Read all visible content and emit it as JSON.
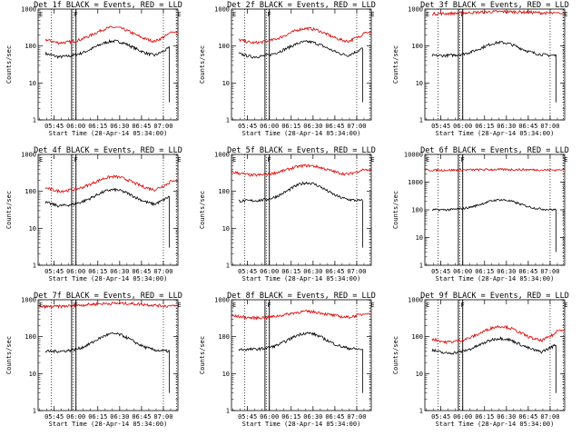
{
  "chart_data": [
    {
      "type": "line",
      "title": "Det 1f BLACK = Events, RED = LLD",
      "xlabel": "Start Time (28-Apr-14 05:34:00)",
      "ylabel": "Counts/sec",
      "yscale": "log",
      "ylim": [
        1,
        1000
      ],
      "yticks": [
        "1",
        "10",
        "100",
        "1000"
      ],
      "x_ticks": [
        "05:45",
        "06:00",
        "06:15",
        "06:30",
        "06:45",
        "07:00"
      ],
      "xlim_minutes": [
        0,
        96
      ],
      "markers": [
        "E",
        "F",
        "E"
      ],
      "markers_at_min": [
        0,
        24,
        95
      ],
      "dotted_lines_min": [
        9,
        24,
        26,
        86,
        95
      ],
      "solid_lines_min": [
        23,
        26
      ],
      "series": [
        {
          "color": "#000000",
          "shape": "valley_hump",
          "base": 50,
          "peak": 135,
          "start": 5,
          "end": 90
        },
        {
          "color": "#dd0000",
          "shape": "valley_hump",
          "base": 120,
          "peak": 320,
          "start": 5,
          "end": 96,
          "end_value": 240
        }
      ]
    },
    {
      "type": "line",
      "title": "Det 2f BLACK = Events, RED = LLD",
      "xlabel": "Start Time (28-Apr-14 05:34:00)",
      "ylabel": "Counts/sec",
      "yscale": "log",
      "ylim": [
        1,
        1000
      ],
      "yticks": [
        "1",
        "10",
        "100",
        "1000"
      ],
      "x_ticks": [
        "05:45",
        "06:00",
        "06:15",
        "06:30",
        "06:45",
        "07:00"
      ],
      "xlim_minutes": [
        0,
        96
      ],
      "markers": [
        "E",
        "F",
        "E"
      ],
      "markers_at_min": [
        0,
        24,
        95
      ],
      "dotted_lines_min": [
        9,
        24,
        26,
        86,
        95
      ],
      "solid_lines_min": [
        23,
        26
      ],
      "series": [
        {
          "color": "#000000",
          "shape": "valley_hump",
          "base": 50,
          "peak": 130,
          "start": 5,
          "end": 90
        },
        {
          "color": "#dd0000",
          "shape": "valley_hump",
          "base": 120,
          "peak": 300,
          "start": 5,
          "end": 96,
          "end_value": 230
        }
      ]
    },
    {
      "type": "line",
      "title": "Det 3f BLACK = Events, RED = LLD",
      "xlabel": "Start Time (28-Apr-14 05:34:00)",
      "ylabel": "Counts/sec",
      "yscale": "log",
      "ylim": [
        1,
        1000
      ],
      "yticks": [
        "1",
        "10",
        "100",
        "1000"
      ],
      "x_ticks": [
        "05:45",
        "06:00",
        "06:15",
        "06:30",
        "06:45",
        "07:00"
      ],
      "xlim_minutes": [
        0,
        96
      ],
      "markers": [
        "E",
        "F",
        "E"
      ],
      "markers_at_min": [
        0,
        24,
        95
      ],
      "dotted_lines_min": [
        9,
        24,
        26,
        86,
        95
      ],
      "solid_lines_min": [
        23,
        26
      ],
      "series": [
        {
          "color": "#000000",
          "shape": "hump",
          "base": 55,
          "peak": 125,
          "start": 5,
          "end": 90
        },
        {
          "color": "#dd0000",
          "shape": "flat",
          "base": 750,
          "peak": 850,
          "start": 5,
          "end": 96,
          "end_value": 780
        }
      ]
    },
    {
      "type": "line",
      "title": "Det 4f BLACK = Events, RED = LLD",
      "xlabel": "Start Time (28-Apr-14 05:34:00)",
      "ylabel": "Counts/sec",
      "yscale": "log",
      "ylim": [
        1,
        1000
      ],
      "yticks": [
        "1",
        "10",
        "100",
        "1000"
      ],
      "x_ticks": [
        "05:45",
        "06:00",
        "06:15",
        "06:30",
        "06:45",
        "07:00"
      ],
      "xlim_minutes": [
        0,
        96
      ],
      "markers": [
        "E",
        "F",
        "E"
      ],
      "markers_at_min": [
        0,
        24,
        95
      ],
      "dotted_lines_min": [
        9,
        24,
        26,
        86,
        95
      ],
      "solid_lines_min": [
        23,
        26
      ],
      "series": [
        {
          "color": "#000000",
          "shape": "valley_hump",
          "base": 40,
          "peak": 110,
          "start": 5,
          "end": 90
        },
        {
          "color": "#dd0000",
          "shape": "valley_hump",
          "base": 100,
          "peak": 250,
          "start": 5,
          "end": 96,
          "end_value": 190
        }
      ]
    },
    {
      "type": "line",
      "title": "Det 5f BLACK = Events, RED = LLD",
      "xlabel": "Start Time (28-Apr-14 05:34:00)",
      "ylabel": "Counts/sec",
      "yscale": "log",
      "ylim": [
        1,
        1000
      ],
      "yticks": [
        "1",
        "10",
        "100",
        "1000"
      ],
      "x_ticks": [
        "05:45",
        "06:00",
        "06:15",
        "06:30",
        "06:45",
        "07:00"
      ],
      "xlim_minutes": [
        0,
        96
      ],
      "markers": [
        "E",
        "F",
        "E"
      ],
      "markers_at_min": [
        0,
        24,
        95
      ],
      "dotted_lines_min": [
        9,
        24,
        26,
        86,
        95
      ],
      "solid_lines_min": [
        23,
        26
      ],
      "series": [
        {
          "color": "#000000",
          "shape": "hump",
          "base": 55,
          "peak": 170,
          "start": 5,
          "end": 90
        },
        {
          "color": "#dd0000",
          "shape": "valley_hump",
          "base": 270,
          "peak": 500,
          "start": 0,
          "end": 96,
          "end_value": 380
        }
      ]
    },
    {
      "type": "line",
      "title": "Det 6f BLACK = Events, RED = LLD",
      "xlabel": "Start Time (28-Apr-14 05:34:00)",
      "ylabel": "Counts/sec",
      "yscale": "log",
      "ylim": [
        1,
        10000
      ],
      "yticks": [
        "1",
        "10",
        "100",
        "1000",
        "10000"
      ],
      "x_ticks": [
        "05:45",
        "06:00",
        "06:15",
        "06:30",
        "06:45",
        "07:00"
      ],
      "xlim_minutes": [
        0,
        96
      ],
      "markers": [
        "E",
        "F",
        "E"
      ],
      "markers_at_min": [
        0,
        24,
        95
      ],
      "dotted_lines_min": [
        9,
        24,
        26,
        86,
        95
      ],
      "solid_lines_min": [
        23,
        26
      ],
      "series": [
        {
          "color": "#000000",
          "shape": "hump",
          "base": 100,
          "peak": 230,
          "start": 5,
          "end": 90
        },
        {
          "color": "#dd0000",
          "shape": "flat",
          "base": 2700,
          "peak": 2850,
          "start": 0,
          "end": 96,
          "end_value": 2800
        }
      ]
    },
    {
      "type": "line",
      "title": "Det 7f BLACK = Events, RED = LLD",
      "xlabel": "Start Time (28-Apr-14 05:34:00)",
      "ylabel": "Counts/sec",
      "yscale": "log",
      "ylim": [
        1,
        1000
      ],
      "yticks": [
        "1",
        "10",
        "100",
        "1000"
      ],
      "x_ticks": [
        "05:45",
        "06:00",
        "06:15",
        "06:30",
        "06:45",
        "07:00"
      ],
      "xlim_minutes": [
        0,
        96
      ],
      "markers": [
        "E",
        "F",
        "E"
      ],
      "markers_at_min": [
        0,
        24,
        95
      ],
      "dotted_lines_min": [
        9,
        24,
        26,
        86,
        95
      ],
      "solid_lines_min": [
        23,
        26
      ],
      "series": [
        {
          "color": "#000000",
          "shape": "hump",
          "base": 40,
          "peak": 120,
          "start": 5,
          "end": 90
        },
        {
          "color": "#dd0000",
          "shape": "flat",
          "base": 650,
          "peak": 800,
          "start": 0,
          "end": 96,
          "end_value": 700
        }
      ]
    },
    {
      "type": "line",
      "title": "Det 8f BLACK = Events, RED = LLD",
      "xlabel": "Start Time (28-Apr-14 05:34:00)",
      "ylabel": "Counts/sec",
      "yscale": "log",
      "ylim": [
        1,
        1000
      ],
      "yticks": [
        "1",
        "10",
        "100",
        "1000"
      ],
      "x_ticks": [
        "05:45",
        "06:00",
        "06:15",
        "06:30",
        "06:45",
        "07:00"
      ],
      "xlim_minutes": [
        0,
        96
      ],
      "markers": [
        "E",
        "F",
        "E"
      ],
      "markers_at_min": [
        0,
        24,
        95
      ],
      "dotted_lines_min": [
        9,
        24,
        26,
        86,
        95
      ],
      "solid_lines_min": [
        23,
        26
      ],
      "series": [
        {
          "color": "#000000",
          "shape": "hump",
          "base": 45,
          "peak": 125,
          "start": 5,
          "end": 90
        },
        {
          "color": "#dd0000",
          "shape": "valley_hump",
          "base": 320,
          "peak": 480,
          "start": 0,
          "end": 96,
          "end_value": 420
        }
      ]
    },
    {
      "type": "line",
      "title": "Det 9f BLACK = Events, RED = LLD",
      "xlabel": "Start Time (28-Apr-14 05:34:00)",
      "ylabel": "Counts/sec",
      "yscale": "log",
      "ylim": [
        1,
        1000
      ],
      "yticks": [
        "1",
        "10",
        "100",
        "1000"
      ],
      "x_ticks": [
        "05:45",
        "06:00",
        "06:15",
        "06:30",
        "06:45",
        "07:00"
      ],
      "xlim_minutes": [
        0,
        96
      ],
      "markers": [
        "E",
        "F",
        "E"
      ],
      "markers_at_min": [
        0,
        24,
        95
      ],
      "dotted_lines_min": [
        9,
        24,
        26,
        86,
        95
      ],
      "solid_lines_min": [
        23,
        26
      ],
      "series": [
        {
          "color": "#000000",
          "shape": "valley_hump",
          "base": 35,
          "peak": 90,
          "start": 5,
          "end": 90
        },
        {
          "color": "#dd0000",
          "shape": "valley_hump",
          "base": 70,
          "peak": 190,
          "start": 5,
          "end": 96,
          "end_value": 150
        }
      ]
    }
  ]
}
